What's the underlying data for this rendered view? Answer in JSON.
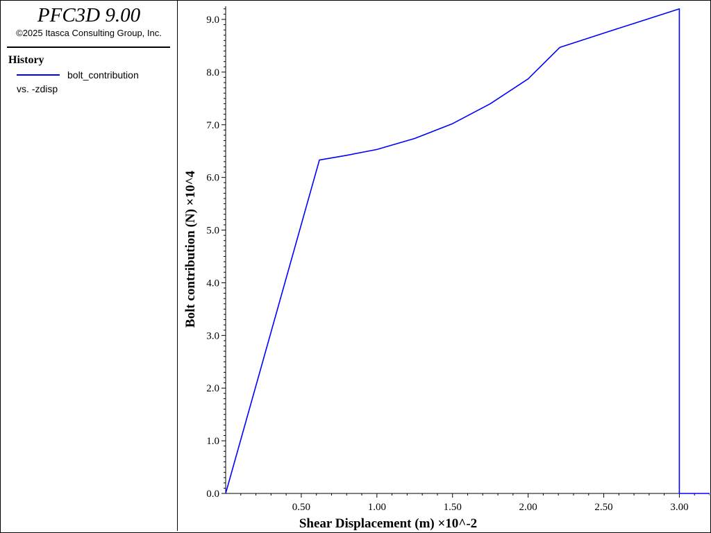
{
  "app": {
    "title": "PFC3D 9.00",
    "copyright": "©2025 Itasca Consulting Group, Inc."
  },
  "legend": {
    "heading": "History",
    "series_label": "bolt_contribution",
    "vs_label": "vs. -zdisp",
    "line_color": "#0000ff"
  },
  "chart_data": {
    "type": "line",
    "title": "",
    "xlabel": "Shear Displacement (m) ×10^-2",
    "ylabel": "Bolt contribution (N) ×10^4",
    "xlim": [
      0.0,
      3.2
    ],
    "ylim": [
      0.0,
      9.25
    ],
    "xticks": [
      0.5,
      1.0,
      1.5,
      2.0,
      2.5,
      3.0
    ],
    "xtick_labels": [
      "0.50",
      "1.00",
      "1.50",
      "2.00",
      "2.50",
      "3.00"
    ],
    "yticks": [
      0,
      1,
      2,
      3,
      4,
      5,
      6,
      7,
      8,
      9
    ],
    "ytick_labels": [
      "0.0",
      "1.0",
      "2.0",
      "3.0",
      "4.0",
      "5.0",
      "6.0",
      "7.0",
      "8.0",
      "9.0"
    ],
    "grid": false,
    "legend_position": "left-panel",
    "series": [
      {
        "name": "bolt_contribution",
        "color": "#0000ff",
        "x": [
          0.0,
          0.62,
          0.8,
          1.0,
          1.25,
          1.5,
          1.75,
          2.0,
          2.21,
          2.5,
          2.75,
          3.0,
          3.0,
          3.2
        ],
        "y": [
          0.0,
          6.33,
          6.42,
          6.53,
          6.74,
          7.02,
          7.4,
          7.87,
          8.47,
          8.74,
          8.97,
          9.2,
          0.0,
          0.0
        ]
      }
    ]
  }
}
